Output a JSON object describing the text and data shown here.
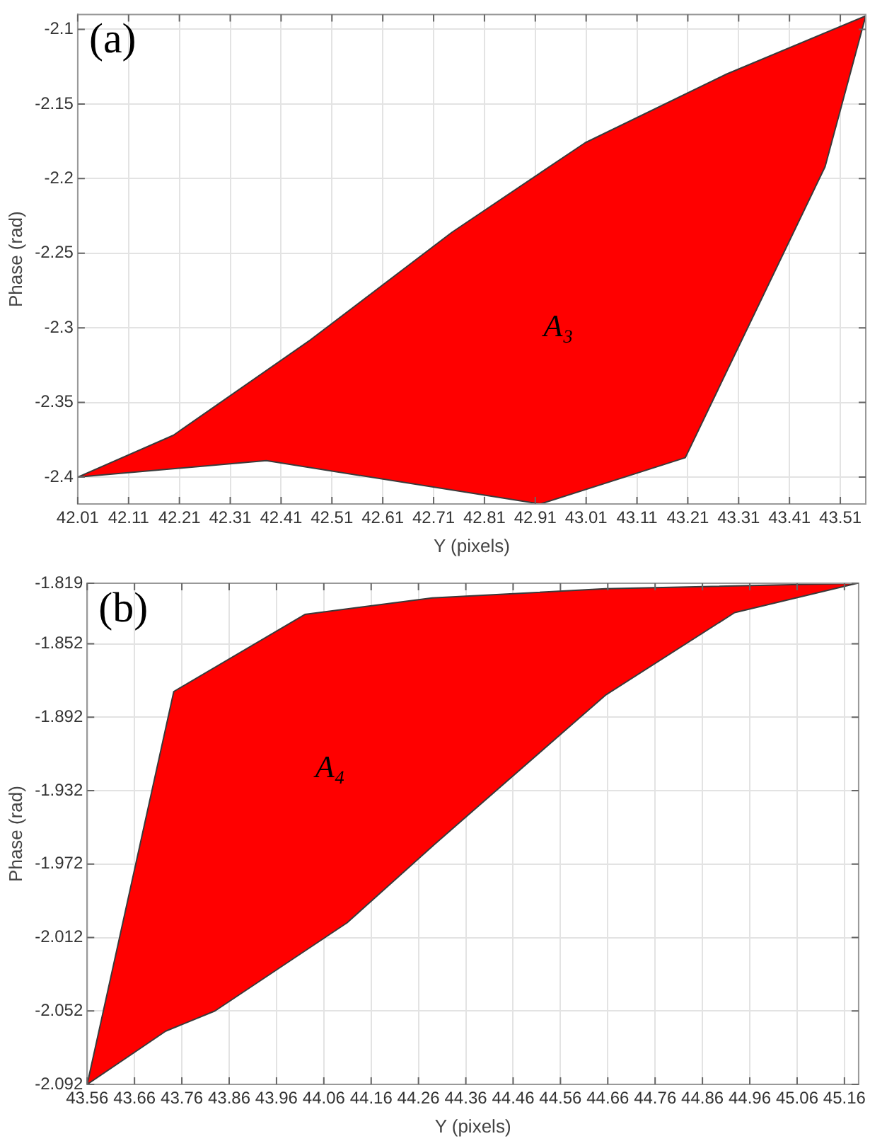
{
  "chart_data": [
    {
      "type": "area",
      "xlabel": "Y (pixels)",
      "ylabel": "Phase (rad)",
      "grid": true,
      "xlim": [
        42.01,
        43.56
      ],
      "xticks": [
        42.01,
        42.11,
        42.21,
        42.31,
        42.41,
        42.51,
        42.61,
        42.71,
        42.81,
        42.91,
        43.01,
        43.11,
        43.21,
        43.31,
        43.41,
        43.51
      ],
      "ylim": [
        -2.418,
        -2.09
      ],
      "yticks": [
        -2.4,
        -2.35,
        -2.3,
        -2.25,
        -2.2,
        -2.15,
        -2.1
      ],
      "annotations": [
        "(a)",
        "A₃"
      ],
      "series": [
        {
          "color": "#ff0000",
          "x": [
            42.01,
            42.198,
            42.468,
            42.746,
            43.008,
            43.286,
            43.56,
            43.48,
            43.205,
            42.92,
            42.381,
            42.01
          ],
          "values": [
            -2.4,
            -2.372,
            -2.308,
            -2.236,
            -2.176,
            -2.13,
            -2.091,
            -2.192,
            -2.387,
            -2.418,
            -2.389,
            -2.4
          ]
        }
      ]
    },
    {
      "type": "area",
      "xlabel": "Y (pixels)",
      "ylabel": "Phase (rad)",
      "grid": true,
      "xlim": [
        43.56,
        45.19
      ],
      "xticks": [
        43.56,
        43.66,
        43.76,
        43.86,
        43.96,
        44.06,
        44.16,
        44.26,
        44.36,
        44.46,
        44.56,
        44.66,
        44.76,
        44.86,
        44.96,
        45.06,
        45.16
      ],
      "ylim": [
        -2.092,
        -1.819
      ],
      "yticks": [
        -2.092,
        -2.052,
        -2.012,
        -1.972,
        -1.932,
        -1.892,
        -1.852,
        -1.819
      ],
      "annotations": [
        "(b)",
        "A₄"
      ],
      "series": [
        {
          "color": "#ff0000",
          "x": [
            43.56,
            43.743,
            44.02,
            44.289,
            44.655,
            45.187,
            44.928,
            44.655,
            44.295,
            44.109,
            43.83,
            43.726,
            43.56
          ],
          "values": [
            -2.092,
            -1.878,
            -1.836,
            -1.827,
            -1.822,
            -1.819,
            -1.835,
            -1.88,
            -1.961,
            -2.004,
            -2.052,
            -2.063,
            -2.092
          ]
        }
      ]
    }
  ]
}
